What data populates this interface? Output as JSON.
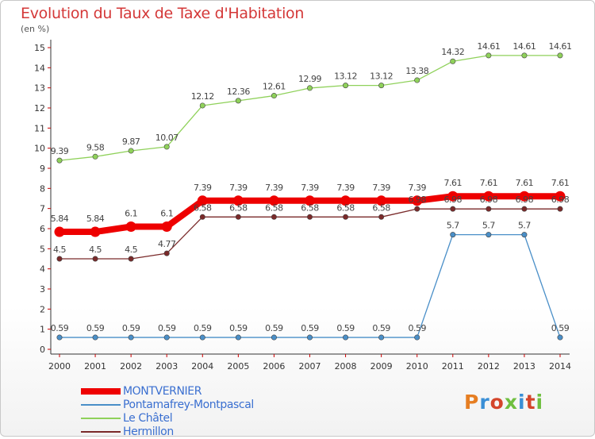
{
  "title": "Evolution du Taux de Taxe d'Habitation",
  "subtitle": "(en %)",
  "logo": {
    "text": "Proxiti",
    "colors": [
      "#e67e22",
      "#3a8fd6",
      "#d4452b",
      "#6fbf3f",
      "#3a8fd6",
      "#d4452b",
      "#6fbf3f"
    ]
  },
  "chart_data": {
    "type": "line",
    "x": [
      2000,
      2001,
      2002,
      2003,
      2004,
      2005,
      2006,
      2007,
      2008,
      2009,
      2010,
      2011,
      2012,
      2013,
      2014
    ],
    "ylim": [
      0,
      15
    ],
    "yticks": [
      0,
      1,
      2,
      3,
      4,
      5,
      6,
      7,
      8,
      9,
      10,
      11,
      12,
      13,
      14,
      15
    ],
    "grid": false,
    "legend_position": "bottom-left",
    "series": [
      {
        "name": "MONTVERNIER",
        "color": "#ee0000",
        "values": [
          5.84,
          5.84,
          6.1,
          6.1,
          7.39,
          7.39,
          7.39,
          7.39,
          7.39,
          7.39,
          7.39,
          7.61,
          7.61,
          7.61,
          7.61
        ],
        "labels": [
          "5.84",
          "5.84",
          "6.1",
          "6.1",
          "7.39",
          "7.39",
          "7.39",
          "7.39",
          "7.39",
          "7.39",
          "7.39",
          "7.61",
          "7.61",
          "7.61",
          "7.61"
        ]
      },
      {
        "name": "Pontamafrey-Montpascal",
        "color": "#4a8fc8",
        "values": [
          0.59,
          0.59,
          0.59,
          0.59,
          0.59,
          0.59,
          0.59,
          0.59,
          0.59,
          0.59,
          0.59,
          5.7,
          5.7,
          5.7,
          0.59
        ],
        "labels": [
          "0.59",
          "0.59",
          "0.59",
          "0.59",
          "0.59",
          "0.59",
          "0.59",
          "0.59",
          "0.59",
          "0.59",
          "0.59",
          "5.7",
          "5.7",
          "5.7",
          "0.59"
        ]
      },
      {
        "name": "Le Châtel",
        "color": "#8fd15a",
        "values": [
          9.39,
          9.58,
          9.87,
          10.07,
          12.12,
          12.36,
          12.61,
          12.99,
          13.12,
          13.12,
          13.38,
          14.32,
          14.61,
          14.61,
          14.61
        ],
        "labels": [
          "9.39",
          "9.58",
          "9.87",
          "10.07",
          "12.12",
          "12.36",
          "12.61",
          "12.99",
          "13.12",
          "13.12",
          "13.38",
          "14.32",
          "14.61",
          "14.61",
          "14.61"
        ]
      },
      {
        "name": "Hermillon",
        "color": "#7a2a2a",
        "values": [
          4.5,
          4.5,
          4.5,
          4.77,
          6.58,
          6.58,
          6.58,
          6.58,
          6.58,
          6.58,
          6.98,
          6.98,
          6.98,
          6.98,
          6.98
        ],
        "labels": [
          "4.5",
          "4.5",
          "4.5",
          "4.77",
          "6.58",
          "6.58",
          "6.58",
          "6.58",
          "6.58",
          "6.58",
          "6.98",
          "6.98",
          "6.98",
          "6.98",
          "6.98"
        ]
      }
    ]
  }
}
